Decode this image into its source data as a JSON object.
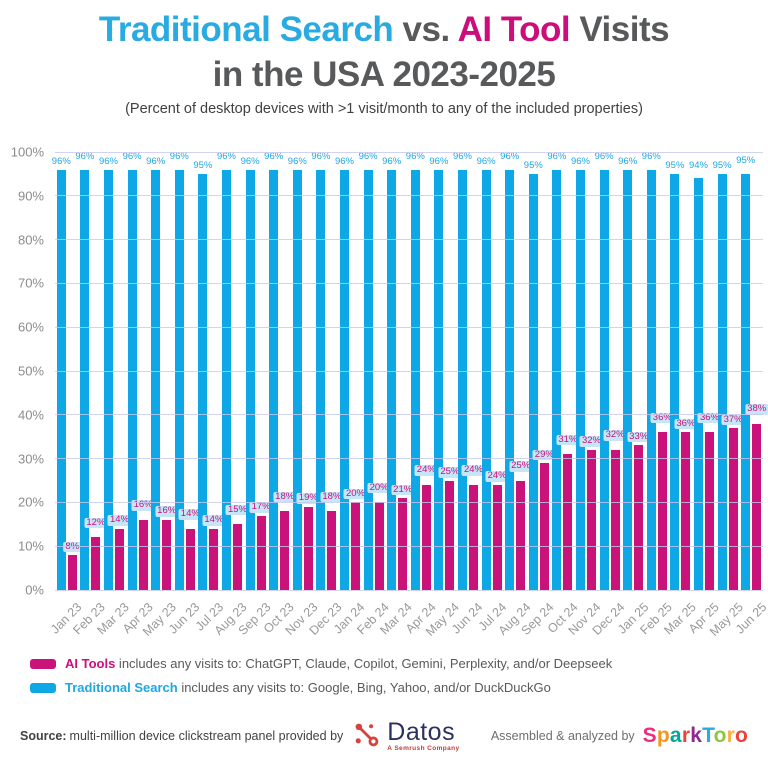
{
  "title": {
    "part_traditional": "Traditional Search",
    "part_vs": " vs. ",
    "part_ai": "AI Tool",
    "part_visits": " Visits",
    "line2": "in the USA 2023-2025",
    "subtitle": "(Percent of desktop devices with >1 visit/month to any of the included properties)"
  },
  "colors": {
    "traditional": "#0DA8E5",
    "ai": "#C9137B",
    "title_gray": "#58595B",
    "gridline": "#C5C8EC",
    "label_badge": "#C6E6F8",
    "axis_text": "#8A8C8E"
  },
  "chart_data": {
    "type": "bar",
    "categories": [
      "Jan 23",
      "Feb 23",
      "Mar 23",
      "Apr 23",
      "May 23",
      "Jun 23",
      "Jul 23",
      "Aug 23",
      "Sep 23",
      "Oct 23",
      "Nov 23",
      "Dec 23",
      "Jan 24",
      "Feb 24",
      "Mar 24",
      "Apr 24",
      "May 24",
      "Jun 24",
      "Jul 24",
      "Aug 24",
      "Sep 24",
      "Oct 24",
      "Nov 24",
      "Dec 24",
      "Jan 25",
      "Feb 25",
      "Mar 25",
      "Apr 25",
      "May 25",
      "Jun 25"
    ],
    "series": [
      {
        "name": "Traditional Search",
        "color": "#0DA8E5",
        "values": [
          96,
          96,
          96,
          96,
          96,
          96,
          95,
          96,
          96,
          96,
          96,
          96,
          96,
          96,
          96,
          96,
          96,
          96,
          96,
          96,
          95,
          96,
          96,
          96,
          96,
          96,
          95,
          94,
          95,
          95
        ]
      },
      {
        "name": "AI Tools",
        "color": "#C9137B",
        "values": [
          8,
          12,
          14,
          16,
          16,
          14,
          14,
          15,
          17,
          18,
          19,
          18,
          20,
          20,
          21,
          24,
          25,
          24,
          24,
          25,
          29,
          31,
          32,
          32,
          33,
          36,
          36,
          36,
          37,
          38
        ]
      }
    ],
    "yticks": [
      "0%",
      "10%",
      "20%",
      "30%",
      "40%",
      "50%",
      "60%",
      "70%",
      "80%",
      "90%",
      "100%"
    ],
    "ylim": [
      0,
      100
    ],
    "grid": true,
    "legend_position": "bottom",
    "title": "Traditional Search vs. AI Tool Visits in the USA 2023-2025",
    "xlabel": "",
    "ylabel": ""
  },
  "legend": {
    "ai_label": "AI Tools",
    "ai_text": " includes any visits to: ChatGPT, Claude, Copilot, Gemini, Perplexity, and/or Deepseek",
    "traditional_label": "Traditional Search",
    "traditional_text": " includes any visits to: Google, Bing, Yahoo, and/or DuckDuckGo"
  },
  "footer": {
    "source_label": "Source:",
    "source_text": "multi-million device clickstream panel provided by",
    "datos_name": "Datos",
    "datos_tagline": "A Semrush Company",
    "assembled_text": "Assembled & analyzed by",
    "sparktoro_letters": [
      {
        "ch": "S",
        "color": "#EC2C83"
      },
      {
        "ch": "p",
        "color": "#F7941E"
      },
      {
        "ch": "a",
        "color": "#00A79D"
      },
      {
        "ch": "r",
        "color": "#EF4136"
      },
      {
        "ch": "k",
        "color": "#92278F"
      },
      {
        "ch": "T",
        "color": "#29ABE2"
      },
      {
        "ch": "o",
        "color": "#8DC63F"
      },
      {
        "ch": "r",
        "color": "#FBB040"
      },
      {
        "ch": "o",
        "color": "#EF4136"
      }
    ]
  }
}
